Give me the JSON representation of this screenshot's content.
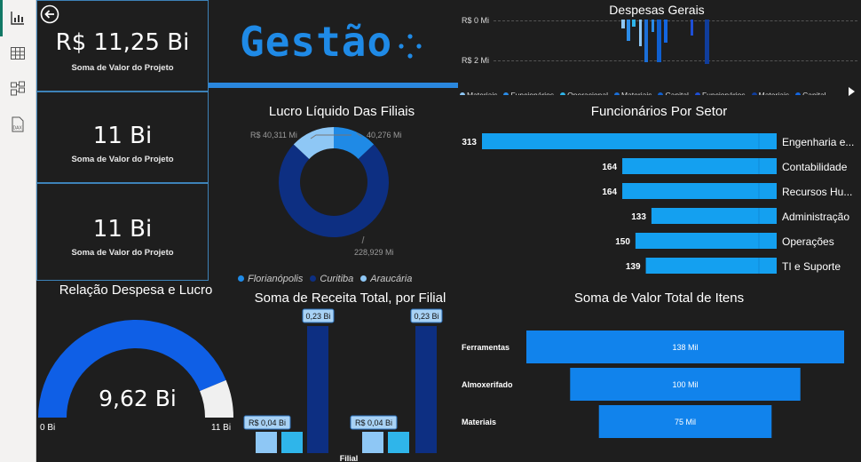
{
  "kpis": [
    {
      "value": "R$ 11,25 Bi",
      "label": "Soma de Valor do Projeto"
    },
    {
      "value": "11 Bi",
      "label": "Soma de Valor do Projeto"
    },
    {
      "value": "11 Bi",
      "label": "Soma de Valor do Projeto"
    }
  ],
  "brand": {
    "title": "Gestão"
  },
  "despesas": {
    "title": "Despesas Gerais",
    "y_ticks": [
      "R$ 0 Mi",
      "R$ 2 Mi"
    ],
    "legend": [
      "Materiais",
      "Funcionários",
      "Operacional",
      "Materiais",
      "Capital",
      "Funcionários",
      "Materiais",
      "Capital"
    ],
    "legend_colors": [
      "#8ec7f5",
      "#2b8ce8",
      "#2fb5ea",
      "#1b6fd8",
      "#0f5fcf",
      "#1e4fd6",
      "#103d9c",
      "#1366e0"
    ]
  },
  "lucro": {
    "title": "Lucro Líquido Das Filiais",
    "labels": {
      "left": "R$ 40,311 Mi",
      "right": "40,276 Mi",
      "bottom": "228,929 Mi"
    },
    "legend": [
      "Florianópolis",
      "Curitiba",
      "Araucária"
    ],
    "colors": [
      "#1f8ae6",
      "#0d2f82",
      "#8ec7f5"
    ]
  },
  "funcionarios": {
    "title": "Funcionários Por Setor",
    "rows": [
      {
        "label": "Engenharia e...",
        "value": 313
      },
      {
        "label": "Contabilidade",
        "value": 164
      },
      {
        "label": "Recursos Hu...",
        "value": 164
      },
      {
        "label": "Administração",
        "value": 133
      },
      {
        "label": "Operações",
        "value": 150
      },
      {
        "label": "TI e Suporte",
        "value": 139
      }
    ],
    "color": "#14a0f0"
  },
  "gauge": {
    "title": "Relação Despesa e Lucro",
    "value_label": "9,62 Bi",
    "min_label": "0 Bi",
    "max_label": "11 Bi",
    "fraction": 0.875,
    "fill_color": "#0f5fe6",
    "rest_color": "#f0f0f0"
  },
  "receita": {
    "title": "Soma de Receita Total, por Filial",
    "xlabel": "Filial",
    "groups": [
      {
        "tall_label": "0,23 Bi",
        "small_label": "R$ 0,04 Bi"
      },
      {
        "tall_label": "0,23 Bi",
        "small_label": "R$ 0,04 Bi"
      }
    ]
  },
  "itens": {
    "title": "Soma de Valor Total de Itens",
    "rows": [
      {
        "label": "Ferramentas",
        "value_label": "138 Mil",
        "value": 138
      },
      {
        "label": "Almoxerifado",
        "value_label": "100 Mil",
        "value": 100
      },
      {
        "label": "Materiais",
        "value_label": "75 Mil",
        "value": 75
      }
    ],
    "color": "#1183ec"
  }
}
